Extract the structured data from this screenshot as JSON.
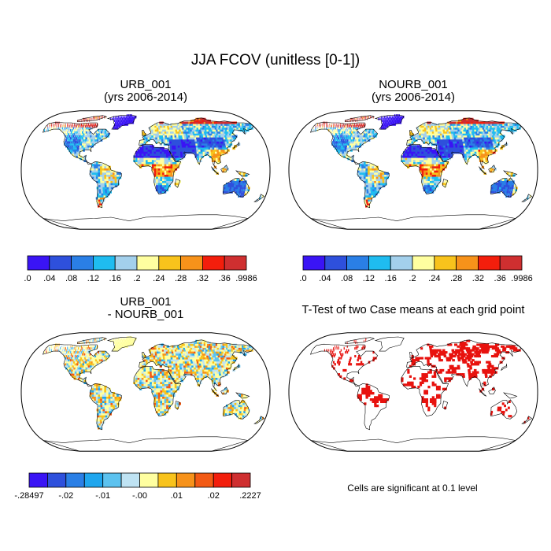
{
  "figure_title": "JJA FCOV (unitless [0-1])",
  "colors": {
    "levels_palette": [
      "#3a14f5",
      "#2e50dc",
      "#2a7fe6",
      "#1fbcf0",
      "#a3d0ec",
      "#ffffa0",
      "#f8c31c",
      "#f7921a",
      "#f31e0c",
      "#cf2f30"
    ],
    "diff_palette": [
      "#3a14f5",
      "#2e50dc",
      "#2a7fe6",
      "#1fa6ee",
      "#5cc2ef",
      "#bfe3f3",
      "#ffffa0",
      "#f8c31c",
      "#f7921a",
      "#f35a14",
      "#f31e0c",
      "#cf2f30"
    ],
    "land_outline": "#000000",
    "significant": "#e8120e"
  },
  "chart_data": [
    {
      "type": "heatmap",
      "projection": "Robinson",
      "title": "URB_001",
      "subtitle": "(yrs 2006-2014)",
      "field": "FCOV",
      "colorbar_labels": [
        ".0",
        ".04",
        ".08",
        ".12",
        ".16",
        ".2",
        ".24",
        ".28",
        ".32",
        ".36",
        ".9986"
      ],
      "colorbar_range": [
        0,
        0.9986
      ]
    },
    {
      "type": "heatmap",
      "projection": "Robinson",
      "title": "NOURB_001",
      "subtitle": "(yrs 2006-2014)",
      "field": "FCOV",
      "colorbar_labels": [
        ".0",
        ".04",
        ".08",
        ".12",
        ".16",
        ".2",
        ".24",
        ".28",
        ".32",
        ".36",
        ".9986"
      ],
      "colorbar_range": [
        0,
        0.9986
      ]
    },
    {
      "type": "heatmap",
      "projection": "Robinson",
      "title": "URB_001",
      "subtitle": "- NOURB_001",
      "field": "FCOV difference",
      "colorbar_labels": [
        "-.28497",
        "-.02",
        "-.01",
        "-.00",
        ".01",
        ".02",
        ".2227"
      ],
      "colorbar_range": [
        -0.28497,
        0.2227
      ]
    },
    {
      "type": "heatmap",
      "projection": "Robinson",
      "title": "T-Test of two Case means at each grid point",
      "field": "significance mask",
      "significance_level": 0.1,
      "note": "Cells are significant at 0.1 level"
    }
  ]
}
